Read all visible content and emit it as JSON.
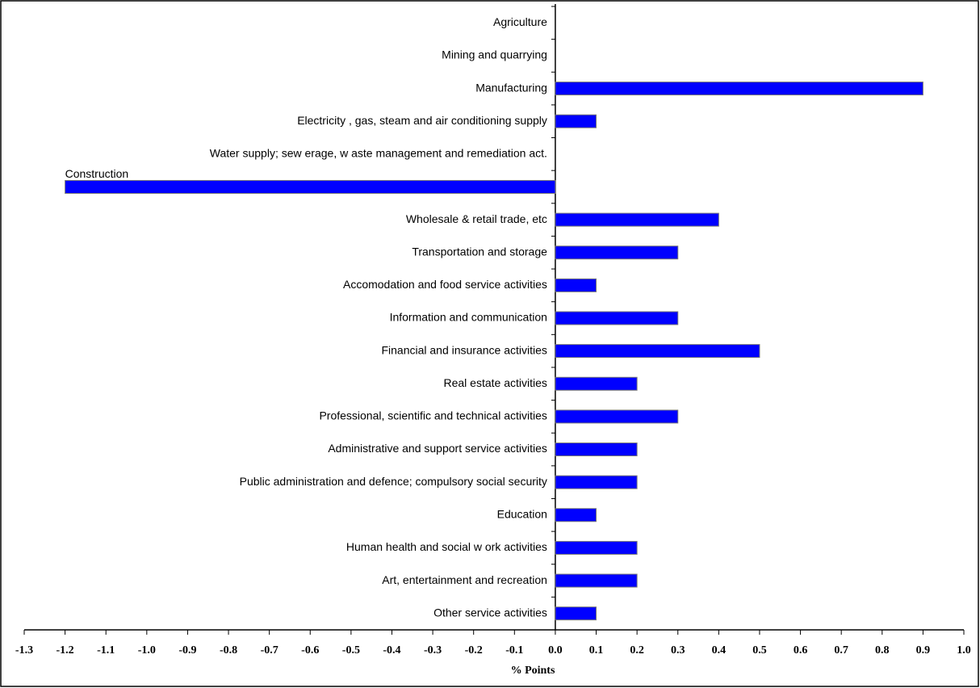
{
  "chart_data": {
    "type": "bar",
    "orientation": "horizontal",
    "x_label": "% Points",
    "categories": [
      "Agriculture",
      "Mining and quarrying",
      "Manufacturing",
      "Electricity , gas, steam and air conditioning supply",
      "Water supply; sew erage, w aste management and remediation act.",
      "Construction",
      "Wholesale & retail trade, etc",
      "Transportation and storage",
      "Accomodation and food service activities",
      "Information and communication",
      "Financial and insurance activities",
      "Real estate activities",
      "Professional, scientific and technical activities",
      "Administrative and support service activities",
      "Public administration  and defence; compulsory social security",
      "Education",
      "Human health and social w ork activities",
      "Art, entertainment and recreation",
      "Other service activities"
    ],
    "values": [
      0,
      0,
      0.9,
      0.1,
      0,
      -1.2,
      0.4,
      0.3,
      0.1,
      0.3,
      0.5,
      0.2,
      0.3,
      0.2,
      0.2,
      0.1,
      0.2,
      0.2,
      0.1
    ],
    "color": "#0000ff",
    "xlim": [
      -1.3,
      1.0
    ],
    "xticks": [
      -1.3,
      -1.2,
      -1.1,
      {
        "value": -1,
        "label": "-1.0"
      },
      -0.9,
      -0.8,
      -0.7,
      -0.6,
      -0.5,
      -0.4,
      -0.3,
      -0.2,
      -0.1,
      {
        "value": 0,
        "label": "0.0"
      },
      0.1,
      0.2,
      0.3,
      0.4,
      0.5,
      0.6,
      0.7,
      0.8,
      0.9,
      {
        "value": 1,
        "label": "1.0"
      }
    ],
    "grid": false
  }
}
